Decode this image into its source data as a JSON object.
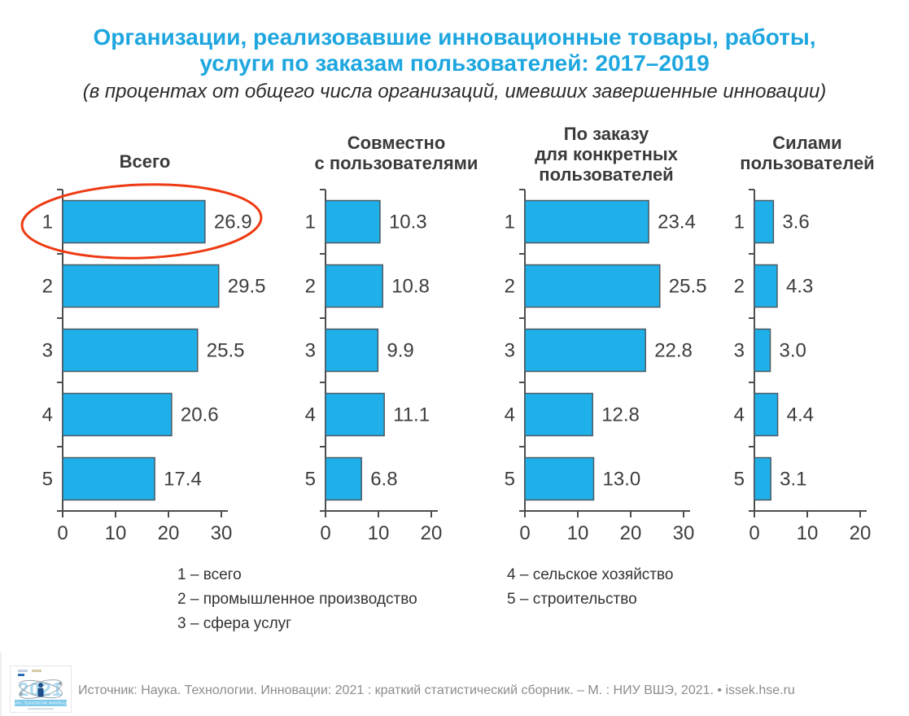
{
  "page": {
    "title_line1": "Организации, реализовавшие инновационные товары, работы,",
    "title_line2": "услуги по заказам пользователей: 2017–2019",
    "subtitle": "(в процентах от общего числа организаций, имевших завершенные инновации)"
  },
  "colors": {
    "accent_blue": "#1ea6df",
    "bar_fill": "#1fb0ea",
    "bar_border": "#4b5a62",
    "axis": "#4d4d4d",
    "text_dark": "#3d3d3d",
    "annotation_red": "#ed3a12",
    "footer_gray": "#8c8c8c",
    "logo_light_blue": "#a9d9f0",
    "logo_banner_blue": "#7fc9ea",
    "logo_dark_blue": "#1c4f8a"
  },
  "chart_data": [
    {
      "type": "bar",
      "orientation": "horizontal",
      "title": "Всего",
      "title_lines": [
        "Всего"
      ],
      "categories": [
        "1",
        "2",
        "3",
        "4",
        "5"
      ],
      "values": [
        26.9,
        29.5,
        25.5,
        20.6,
        17.4
      ],
      "value_labels": [
        "26.9",
        "29.5",
        "25.5",
        "20.6",
        "17.4"
      ],
      "xlim": [
        0,
        30
      ],
      "xticks": [
        0,
        10,
        20,
        30
      ]
    },
    {
      "type": "bar",
      "orientation": "horizontal",
      "title": "Совместно с пользователями",
      "title_lines": [
        "Совместно",
        "с пользователями"
      ],
      "categories": [
        "1",
        "2",
        "3",
        "4",
        "5"
      ],
      "values": [
        10.3,
        10.8,
        9.9,
        11.1,
        6.8
      ],
      "value_labels": [
        "10.3",
        "10.8",
        "9.9",
        "11.1",
        "6.8"
      ],
      "xlim": [
        0,
        20
      ],
      "xticks": [
        0,
        10,
        20
      ]
    },
    {
      "type": "bar",
      "orientation": "horizontal",
      "title": "По заказу для конкретных пользователей",
      "title_lines": [
        "По заказу",
        "для конкретных",
        "пользователей"
      ],
      "categories": [
        "1",
        "2",
        "3",
        "4",
        "5"
      ],
      "values": [
        23.4,
        25.5,
        22.8,
        12.8,
        13.0
      ],
      "value_labels": [
        "23.4",
        "25.5",
        "22.8",
        "12.8",
        "13.0"
      ],
      "xlim": [
        0,
        30
      ],
      "xticks": [
        0,
        10,
        20,
        30
      ]
    },
    {
      "type": "bar",
      "orientation": "horizontal",
      "title": "Силами пользователей",
      "title_lines": [
        "Силами",
        "пользователей"
      ],
      "categories": [
        "1",
        "2",
        "3",
        "4",
        "5"
      ],
      "values": [
        3.6,
        4.3,
        3.0,
        4.4,
        3.1
      ],
      "value_labels": [
        "3.6",
        "4.3",
        "3.0",
        "4.4",
        "3.1"
      ],
      "xlim": [
        0,
        20
      ],
      "xticks": [
        0,
        10,
        20
      ]
    }
  ],
  "annotation": {
    "shape": "ellipse",
    "highlights": "Всего — категория 1 (26.9)"
  },
  "legend": {
    "columns": [
      [
        "1 – всего",
        "2 – промышленное производство",
        "3 – сфера услуг"
      ],
      [
        "4 – сельское хозяйство",
        "5 – строительство"
      ]
    ]
  },
  "footer": {
    "source_text": "Источник: Наука. Технологии. Инновации: 2021 : краткий статистический сборник. – М. : НИУ ВШЭ, 2021. • ",
    "site": "issek.hse.ru",
    "logo_year": "2021",
    "logo_caption": "НАУКА. ТЕХНОЛОГИИ. ИННОВАЦИИ"
  }
}
